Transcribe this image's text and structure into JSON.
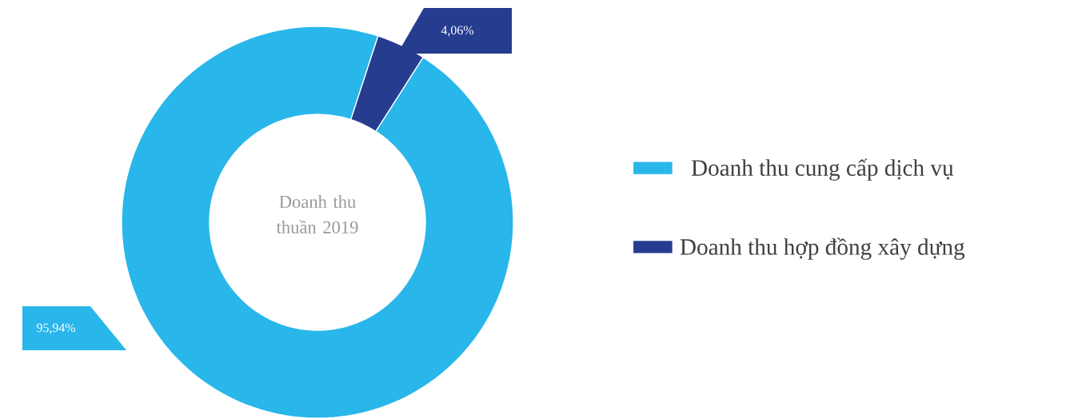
{
  "chart_data": {
    "type": "donut",
    "title": "Doanh thu thuần 2019",
    "categories": [
      "Doanh thu cung cấp dịch vụ",
      "Doanh thu hợp đồng xây dựng"
    ],
    "values": [
      95.94,
      4.06
    ],
    "colors": [
      "#29b6ea",
      "#263c8f"
    ],
    "value_labels": [
      "95,94%",
      "4,06%"
    ],
    "legend": "right"
  }
}
